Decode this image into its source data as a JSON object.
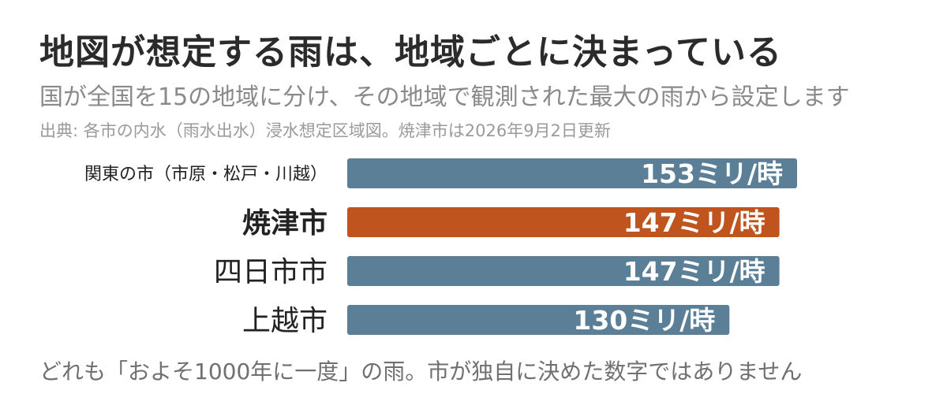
{
  "title": "地図が想定する雨は、地域ごとに決まっている",
  "subtitle": "国が全国を15の地域に分け、その地域で観測された最大の雨から設定します",
  "source": "出典: 各市の内水（雨水出水）浸水想定区域図。焼津市は2026年9月2日更新",
  "footnote": "どれも「およそ1000年に一度」の雨。市が独自に決めた数字ではありません",
  "colors": {
    "bar_default": "#5b7f96",
    "bar_highlight": "#c0541f",
    "label_text": "#222222",
    "value_text": "#ffffff"
  },
  "chart_data": {
    "type": "bar",
    "orientation": "horizontal",
    "categories": [
      "関東の市（市原・松戸・川越）",
      "焼津市",
      "四日市市",
      "上越市"
    ],
    "values": [
      153,
      147,
      147,
      130
    ],
    "value_labels": [
      "153ミリ/時",
      "147ミリ/時",
      "147ミリ/時",
      "130ミリ/時"
    ],
    "highlight": "焼津市",
    "unit": "ミリ/時"
  }
}
